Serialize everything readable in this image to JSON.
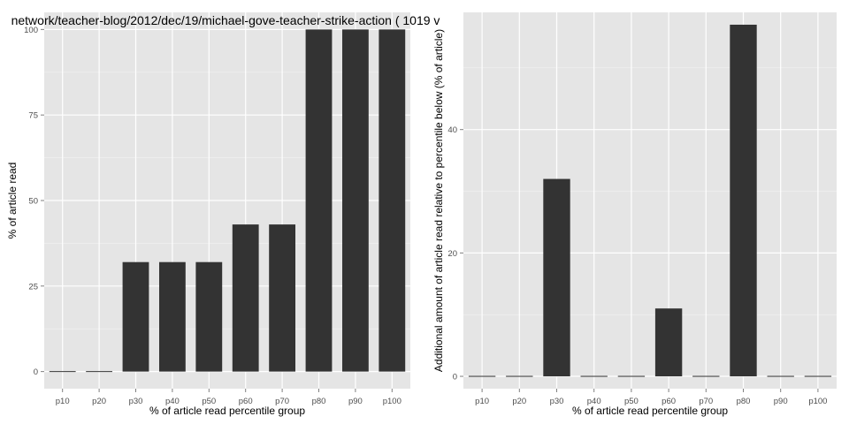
{
  "chart_data": [
    {
      "type": "bar",
      "title": "network/teacher-blog/2012/dec/19/michael-gove-teacher-strike-action ( 1019 v",
      "xlabel": "% of article read percentile group",
      "ylabel": "% of article read",
      "categories": [
        "p10",
        "p20",
        "p30",
        "p40",
        "p50",
        "p60",
        "p70",
        "p80",
        "p90",
        "p100"
      ],
      "values": [
        0,
        0,
        32,
        32,
        32,
        43,
        43,
        100,
        100,
        100
      ],
      "ylim": [
        -5,
        105
      ],
      "yticks": [
        0,
        25,
        50,
        75,
        100
      ],
      "ytick_labels": [
        "0",
        "25",
        "50",
        "75",
        "100"
      ],
      "grid": true
    },
    {
      "type": "bar",
      "title": "",
      "xlabel": "% of article read percentile group",
      "ylabel": "Additional amount of article read relative to percentile below (% of article)",
      "categories": [
        "p10",
        "p20",
        "p30",
        "p40",
        "p50",
        "p60",
        "p70",
        "p80",
        "p90",
        "p100"
      ],
      "values": [
        0,
        0,
        32,
        0,
        0,
        11,
        0,
        57,
        0,
        0
      ],
      "ylim": [
        -2,
        59
      ],
      "yticks": [
        0,
        20,
        40
      ],
      "ytick_labels": [
        "0",
        "20",
        "40"
      ],
      "grid": true
    }
  ],
  "colors": {
    "panel_background": "#e5e5e5",
    "gridline": "#ffffff",
    "bar_fill": "#333333",
    "tick_text": "#4d4d4d"
  }
}
